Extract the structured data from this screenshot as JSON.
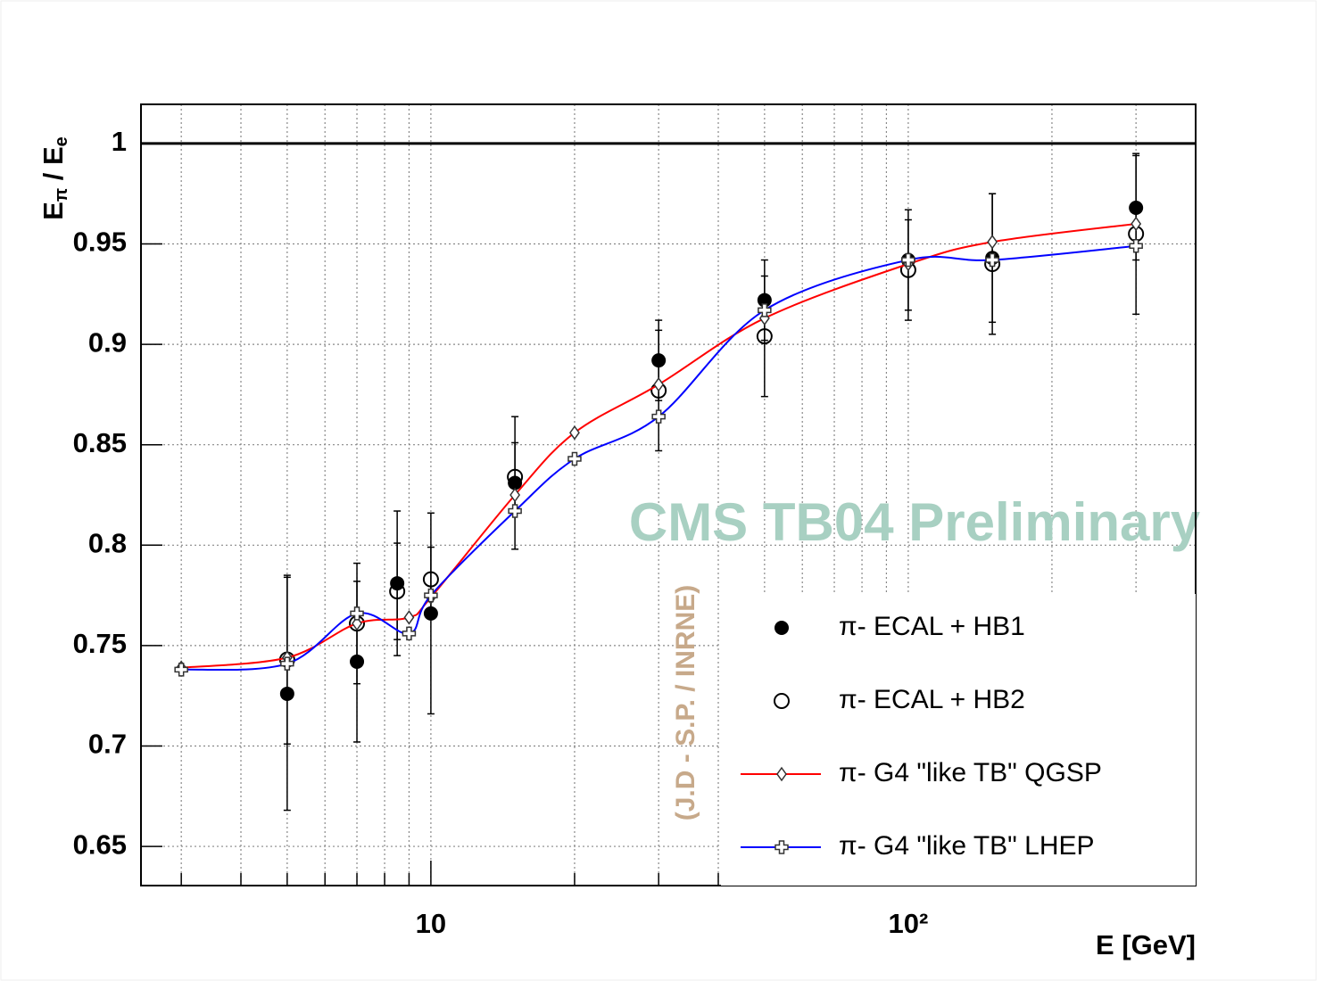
{
  "chart_data": {
    "type": "scatter",
    "x_label": "E [GeV]",
    "y_label": [
      "E",
      "π",
      " / E",
      "e"
    ],
    "xlim": [
      2.47,
      400
    ],
    "ylim": [
      0.6305,
      1.0195
    ],
    "log_x": true,
    "grid": true,
    "xticks": [
      {
        "value": 10,
        "label": "10"
      },
      {
        "value": 100,
        "label": "10²"
      }
    ],
    "xminorticks": [
      3,
      4,
      5,
      6,
      7,
      8,
      9,
      20,
      30,
      40,
      50,
      60,
      70,
      80,
      90,
      200,
      300
    ],
    "yticks": [
      0.65,
      0.7,
      0.75,
      0.8,
      0.85,
      0.9,
      0.95,
      1
    ],
    "reference_line": 1,
    "legend": "lower right",
    "annotations": [
      "CMS TB04 Preliminary",
      "(J.D - S.P. / INRNE)"
    ],
    "series": [
      {
        "name": "π- ECAL + HB1",
        "color": "#000000",
        "marker": "filled-circle",
        "x": [
          5,
          7,
          8.5,
          10,
          15,
          30,
          50,
          100,
          150,
          300
        ],
        "values": [
          0.726,
          0.742,
          0.781,
          0.766,
          0.831,
          0.892,
          0.922,
          0.942,
          0.943,
          0.968
        ],
        "errors": [
          0.058,
          0.04,
          0.036,
          0.05,
          0.033,
          0.02,
          0.02,
          0.025,
          0.032,
          0.026
        ]
      },
      {
        "name": "π- ECAL + HB2",
        "color": "#000000",
        "marker": "open-circle",
        "x": [
          5,
          7,
          8.5,
          10,
          15,
          30,
          50,
          100,
          150,
          300
        ],
        "values": [
          0.743,
          0.761,
          0.777,
          0.783,
          0.834,
          0.877,
          0.904,
          0.937,
          0.94,
          0.955
        ],
        "errors": [
          0.042,
          0.03,
          0.024,
          0.016,
          0.017,
          0.03,
          0.03,
          0.025,
          0.035,
          0.04
        ]
      },
      {
        "name": "π- G4 \"like TB\" QGSP",
        "color": "#ff0000",
        "marker": "diamond",
        "line": true,
        "x": [
          3,
          5,
          7,
          9,
          10,
          15,
          20,
          30,
          50,
          100,
          150,
          300
        ],
        "values": [
          0.739,
          0.744,
          0.761,
          0.764,
          0.774,
          0.825,
          0.856,
          0.88,
          0.913,
          0.94,
          0.951,
          0.96
        ]
      },
      {
        "name": "π- G4 \"like TB\" LHEP",
        "color": "#0000ff",
        "marker": "plus",
        "line": true,
        "x": [
          3,
          5,
          7,
          9,
          10,
          15,
          20,
          30,
          50,
          100,
          150,
          300
        ],
        "values": [
          0.738,
          0.741,
          0.766,
          0.756,
          0.775,
          0.817,
          0.843,
          0.864,
          0.917,
          0.942,
          0.942,
          0.949
        ]
      }
    ]
  }
}
